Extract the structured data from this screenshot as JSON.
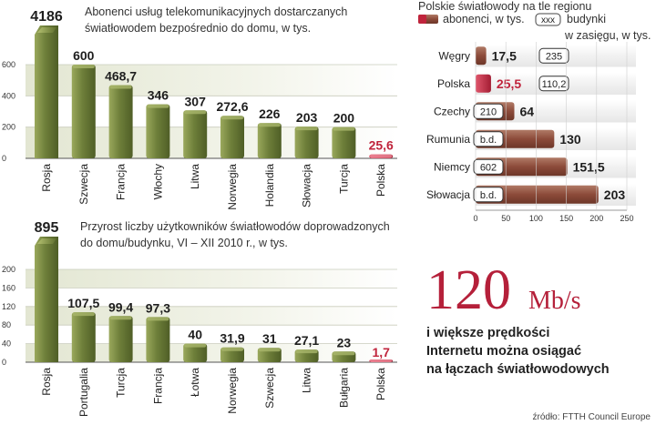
{
  "chart_data": [
    {
      "type": "bar",
      "title": "Abonenci usług telekomunikacyjnych dostarczanych światłowodem bezpośrednio do domu, w tys.",
      "categories": [
        "Rosja",
        "Szwecja",
        "Francja",
        "Włochy",
        "Litwa",
        "Norwegia",
        "Holandia",
        "Słowacja",
        "Turcja",
        "Polska"
      ],
      "values": [
        4186,
        600,
        468.7,
        346,
        307,
        272.6,
        226,
        203,
        200,
        25.6
      ],
      "value_labels": [
        "4186",
        "600",
        "468,7",
        "346",
        "307",
        "272,6",
        "226",
        "203",
        "200",
        "25,6"
      ],
      "ylim": [
        0,
        600
      ],
      "yticks": [
        0,
        200,
        400,
        600
      ],
      "highlight": "Polska",
      "colors": {
        "bar": "#6e7f3a",
        "highlight": "#c0243c"
      }
    },
    {
      "type": "bar",
      "title": "Przyrost liczby użytkowników światłowodów doprowadzonych do domu/budynku, VI – XII 2010 r., w tys.",
      "categories": [
        "Rosja",
        "Portugalia",
        "Turcja",
        "Francja",
        "Łotwa",
        "Norwegia",
        "Szwecja",
        "Litwa",
        "Bułgaria",
        "Polska"
      ],
      "values": [
        895,
        107.5,
        99.4,
        97.3,
        40,
        31.9,
        31,
        27.1,
        23,
        1.7
      ],
      "value_labels": [
        "895",
        "107,5",
        "99,4",
        "97,3",
        "40",
        "31,9",
        "31",
        "27,1",
        "23",
        "1,7"
      ],
      "ylim": [
        0,
        200
      ],
      "yticks": [
        0,
        40,
        80,
        120,
        160,
        200
      ],
      "highlight": "Polska",
      "colors": {
        "bar": "#6e7f3a",
        "highlight": "#c0243c"
      }
    },
    {
      "type": "bar",
      "orientation": "horizontal",
      "title": "Polskie światłowody na tle regionu",
      "legend": {
        "subscribers": "abonenci, w tys.",
        "buildings_box": "xxx",
        "buildings": "budynki w zasięgu, w tys."
      },
      "categories": [
        "Węgry",
        "Polska",
        "Czechy",
        "Rumunia",
        "Niemcy",
        "Słowacja"
      ],
      "series": [
        {
          "name": "abonenci, w tys.",
          "values": [
            17.5,
            25.5,
            64,
            130,
            151.5,
            203
          ],
          "value_labels": [
            "17,5",
            "25,5",
            "64",
            "130",
            "151,5",
            "203"
          ]
        },
        {
          "name": "budynki w zasięgu, w tys.",
          "values": [
            235,
            110.2,
            210,
            null,
            602,
            null
          ],
          "value_labels": [
            "235",
            "110,2",
            "210",
            "b.d.",
            "602",
            "b.d."
          ]
        }
      ],
      "xlim": [
        0,
        250
      ],
      "xticks": [
        0,
        50,
        100,
        150,
        200,
        250
      ],
      "highlight": "Polska",
      "colors": {
        "bar": "#8c4b3a",
        "highlight": "#c0243c"
      }
    }
  ],
  "callout": {
    "number": "120",
    "unit": "Mb/s",
    "lines": [
      "i większe prędkości",
      "Internetu można osiągać",
      "na łączach światłowodowych"
    ],
    "color": "#b5203a"
  },
  "source": "źródło: FTTH Council Europe"
}
